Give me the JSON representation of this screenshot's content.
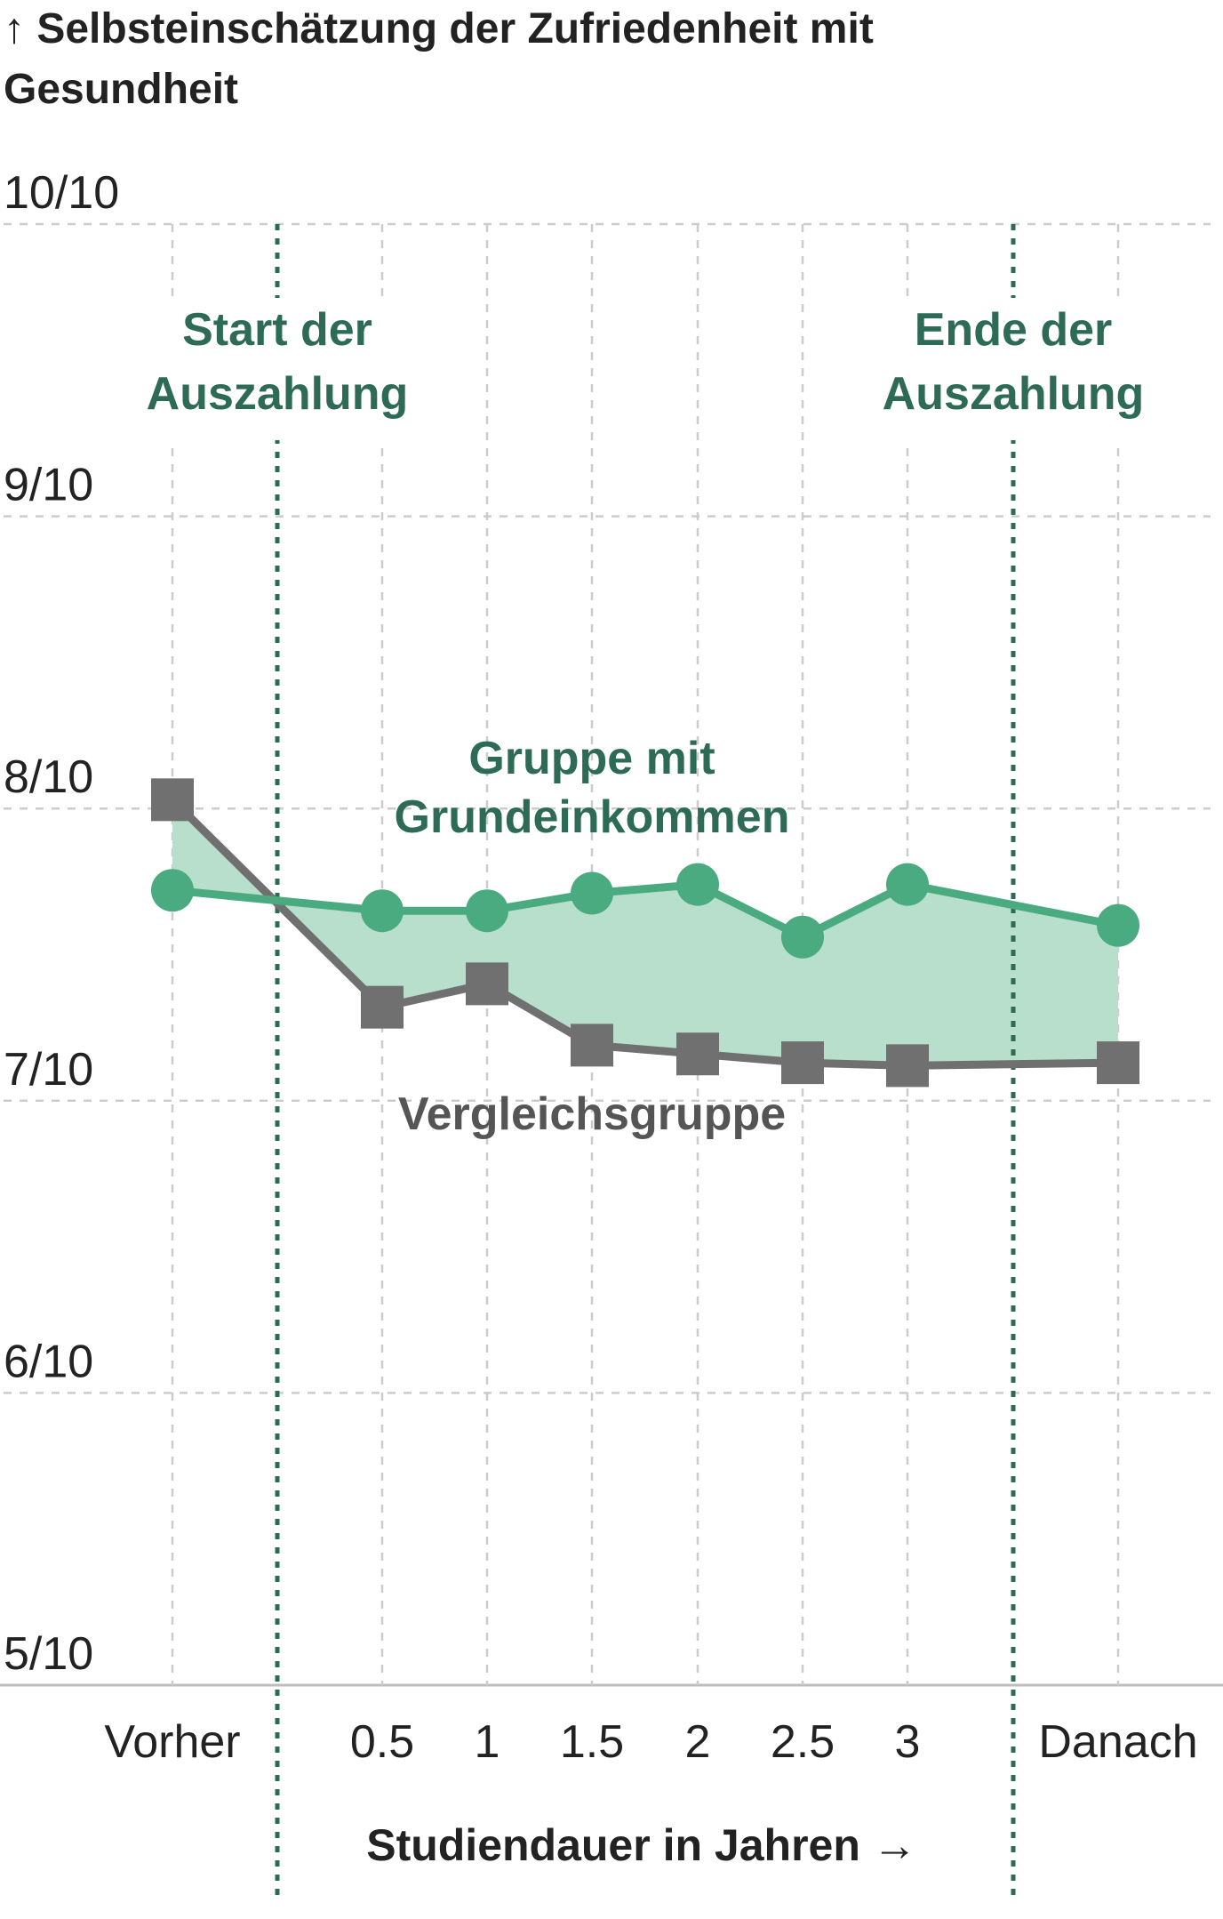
{
  "chart_data": {
    "type": "line",
    "ylabel_lines": [
      "↑ Selbsteinschätzung der Zufriedenheit mit",
      "Gesundheit"
    ],
    "xlabel": "Studiendauer in Jahren →",
    "ylim": [
      5,
      10
    ],
    "y_ticks": [
      {
        "value": 10,
        "label": "10/10"
      },
      {
        "value": 9,
        "label": "9/10"
      },
      {
        "value": 8,
        "label": "8/10"
      },
      {
        "value": 7,
        "label": "7/10"
      },
      {
        "value": 6,
        "label": "6/10"
      },
      {
        "value": 5,
        "label": "5/10"
      }
    ],
    "x_ticks": [
      {
        "x": -1,
        "label": "Vorher"
      },
      {
        "x": 0.5,
        "label": "0.5"
      },
      {
        "x": 1,
        "label": "1"
      },
      {
        "x": 1.5,
        "label": "1.5"
      },
      {
        "x": 2,
        "label": "2"
      },
      {
        "x": 2.5,
        "label": "2.5"
      },
      {
        "x": 3,
        "label": "3"
      },
      {
        "x": 4,
        "label": "Danach"
      }
    ],
    "grid": true,
    "series": [
      {
        "name": "Gruppe mit Grundeinkommen",
        "label_lines": [
          "Gruppe mit",
          "Grundeinkommen"
        ],
        "color": "#4aaa80",
        "marker": "circle",
        "x": [
          -1,
          0.5,
          1,
          1.5,
          2,
          2.5,
          3,
          4
        ],
        "values": [
          7.72,
          7.65,
          7.65,
          7.71,
          7.74,
          7.56,
          7.74,
          7.6
        ]
      },
      {
        "name": "Vergleichsgruppe",
        "label_lines": [
          "Vergleichsgruppe"
        ],
        "color": "#707070",
        "marker": "square",
        "x": [
          -1,
          0.5,
          1,
          1.5,
          2,
          2.5,
          3,
          4
        ],
        "values": [
          8.03,
          7.32,
          7.4,
          7.19,
          7.16,
          7.13,
          7.12,
          7.13
        ]
      }
    ],
    "fill_between_color": "#b7dfcb",
    "annotations": [
      {
        "x": 0,
        "label_lines": [
          "Start der",
          "Auszahlung"
        ],
        "color": "#2e6b56"
      },
      {
        "x": 3.5,
        "label_lines": [
          "Ende der",
          "Auszahlung"
        ],
        "color": "#2e6b56"
      }
    ]
  }
}
